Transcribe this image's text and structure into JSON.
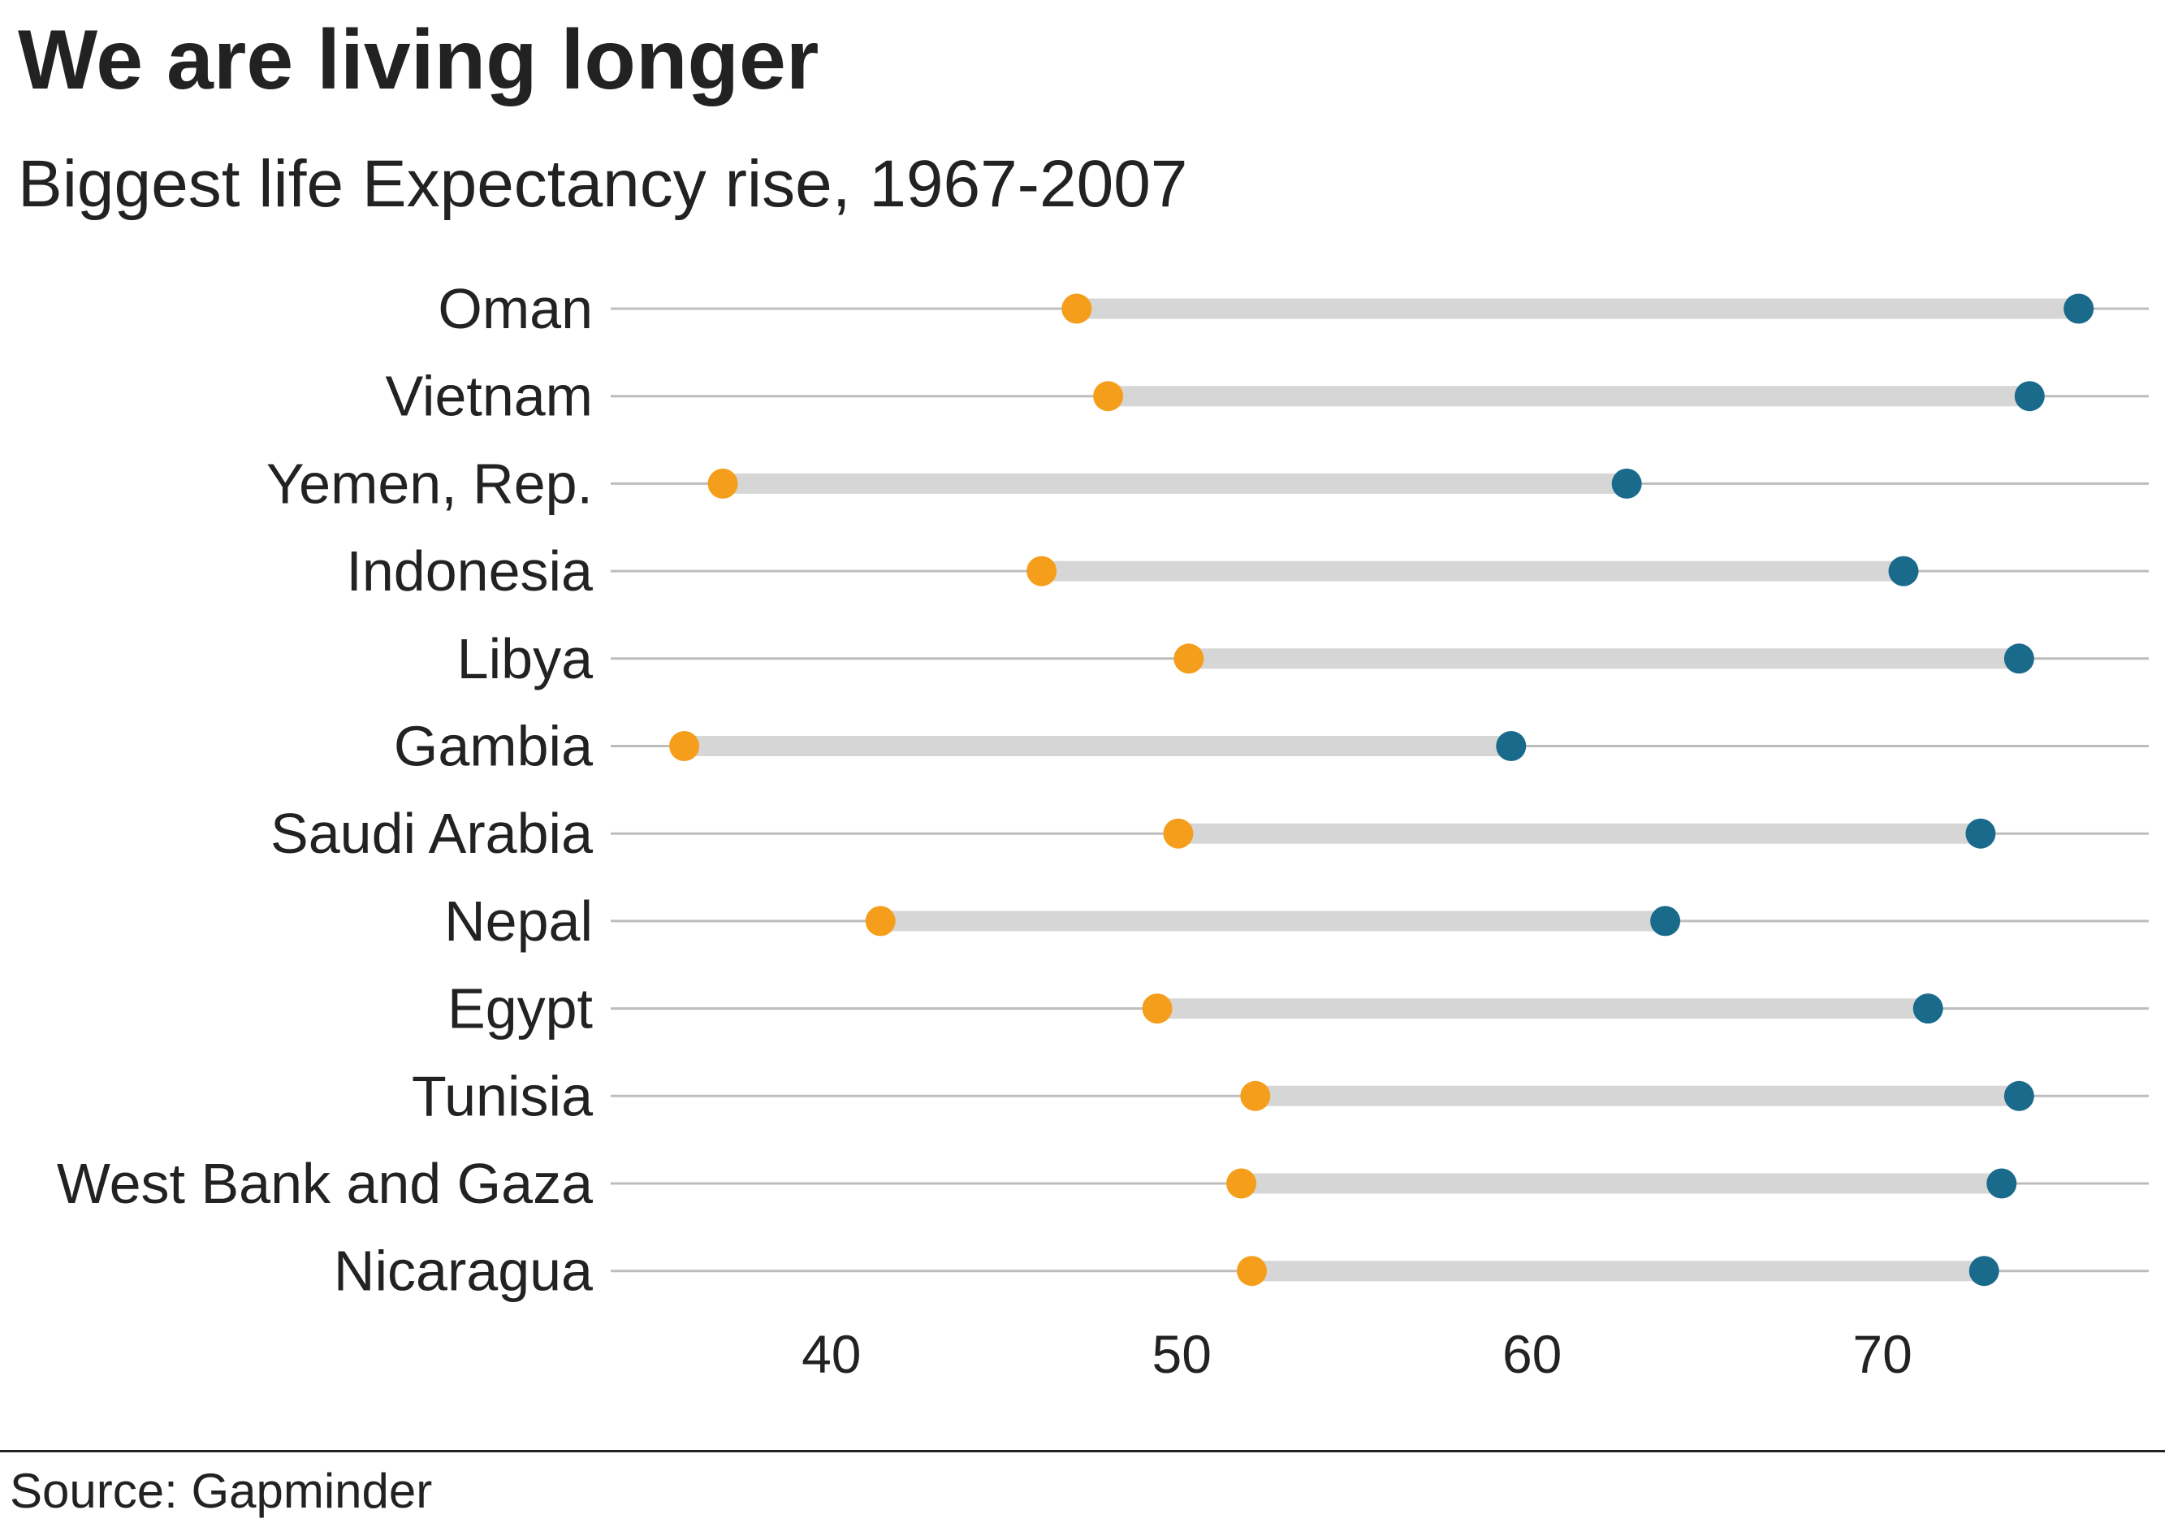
{
  "title": "We are living longer",
  "subtitle": "Biggest life Expectancy rise, 1967-2007",
  "source": "Source: Gapminder",
  "colors": {
    "start_dot": "#f59e1c",
    "end_dot": "#1a6a8c",
    "range_bar": "#d6d6d6",
    "gridline": "#bdbdbd",
    "text": "#222222"
  },
  "chart_data": {
    "type": "dumbbell",
    "categories": [
      "Oman",
      "Vietnam",
      "Yemen, Rep.",
      "Indonesia",
      "Libya",
      "Gambia",
      "Saudi Arabia",
      "Nepal",
      "Egypt",
      "Tunisia",
      "West Bank and Gaza",
      "Nicaragua"
    ],
    "series": [
      {
        "values": [
          47.0,
          47.9,
          36.9,
          46.0,
          50.2,
          35.8,
          49.9,
          41.4,
          49.3,
          52.1,
          51.7,
          52.0
        ]
      },
      {
        "values": [
          75.6,
          74.2,
          62.7,
          70.6,
          73.9,
          59.4,
          72.8,
          63.8,
          71.3,
          73.9,
          73.4,
          72.9
        ]
      }
    ],
    "xticks": [
      "40",
      "50",
      "60",
      "70"
    ],
    "tick_values": [
      40,
      50,
      60,
      70
    ],
    "xlim": [
      33.7,
      77.6
    ],
    "xlabel": "",
    "ylabel": "",
    "grid": true
  }
}
